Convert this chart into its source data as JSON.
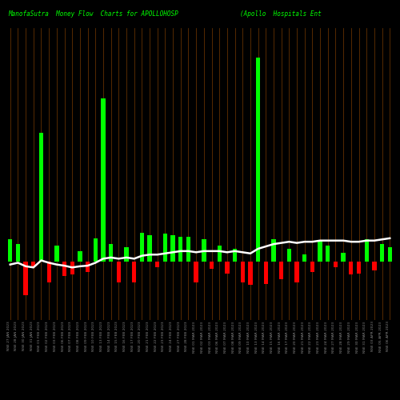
{
  "title_left": "ManofaSutra  Money Flow  Charts for APOLLOHOSP",
  "title_right": "(Apollo  Hospitals Ent",
  "background_color": "#000000",
  "bar_colors_pattern": [
    "green",
    "green",
    "red",
    "red",
    "green",
    "red",
    "green",
    "red",
    "red",
    "green",
    "red",
    "green",
    "green",
    "green",
    "red",
    "green",
    "red",
    "green",
    "green",
    "red",
    "green",
    "green",
    "green",
    "green",
    "red",
    "green",
    "red",
    "green",
    "red",
    "green",
    "red",
    "red",
    "green",
    "red",
    "green",
    "red",
    "green",
    "red",
    "green",
    "red",
    "green",
    "green",
    "red",
    "green",
    "red",
    "red",
    "green",
    "red",
    "green",
    "green"
  ],
  "bar_heights": [
    0.38,
    0.3,
    -0.58,
    -0.08,
    2.2,
    -0.35,
    0.28,
    -0.25,
    -0.22,
    0.18,
    -0.18,
    0.4,
    2.8,
    0.3,
    -0.35,
    0.25,
    -0.35,
    0.5,
    0.45,
    -0.1,
    0.48,
    0.45,
    0.42,
    0.42,
    -0.35,
    0.38,
    -0.12,
    0.28,
    -0.2,
    0.22,
    -0.35,
    -0.4,
    3.5,
    -0.38,
    0.38,
    -0.3,
    0.22,
    -0.35,
    0.12,
    -0.18,
    0.35,
    0.28,
    -0.1,
    0.15,
    -0.22,
    -0.2,
    0.38,
    -0.15,
    0.3,
    0.25
  ],
  "ma_line_y": [
    -0.05,
    -0.02,
    -0.08,
    -0.1,
    0.02,
    -0.02,
    -0.05,
    -0.07,
    -0.1,
    -0.08,
    -0.07,
    -0.02,
    0.05,
    0.07,
    0.05,
    0.07,
    0.05,
    0.1,
    0.12,
    0.12,
    0.14,
    0.16,
    0.18,
    0.18,
    0.16,
    0.18,
    0.18,
    0.18,
    0.16,
    0.18,
    0.16,
    0.14,
    0.22,
    0.26,
    0.3,
    0.32,
    0.34,
    0.32,
    0.34,
    0.34,
    0.36,
    0.36,
    0.36,
    0.36,
    0.34,
    0.34,
    0.36,
    0.36,
    0.38,
    0.4
  ],
  "grid_color": "#8B4500",
  "bar_green": "#00FF00",
  "bar_red": "#FF0000",
  "ma_color": "#FFFFFF",
  "title_color": "#00FF00",
  "xlabel_color": "#888888",
  "ylim_min": -1.0,
  "ylim_max": 4.0,
  "labels": [
    "NSE 27 JAN 2023",
    "NSE 28 JAN 2023",
    "NSE 30 JAN 2023",
    "NSE 31 JAN 2023",
    "NSE 01 FEB 2023",
    "NSE 02 FEB 2023",
    "NSE 03 FEB 2023",
    "NSE 06 FEB 2023",
    "NSE 07 FEB 2023",
    "NSE 08 FEB 2023",
    "NSE 09 FEB 2023",
    "NSE 10 FEB 2023",
    "NSE 13 FEB 2023",
    "NSE 14 FEB 2023",
    "NSE 15 FEB 2023",
    "NSE 16 FEB 2023",
    "NSE 17 FEB 2023",
    "NSE 20 FEB 2023",
    "NSE 21 FEB 2023",
    "NSE 22 FEB 2023",
    "NSE 23 FEB 2023",
    "NSE 24 FEB 2023",
    "NSE 27 FEB 2023",
    "NSE 28 FEB 2023",
    "NSE 01 MAR 2023",
    "NSE 02 MAR 2023",
    "NSE 03 MAR 2023",
    "NSE 06 MAR 2023",
    "NSE 07 MAR 2023",
    "NSE 08 MAR 2023",
    "NSE 09 MAR 2023",
    "NSE 10 MAR 2023",
    "NSE 13 MAR 2023",
    "NSE 14 MAR 2023",
    "NSE 15 MAR 2023",
    "NSE 16 MAR 2023",
    "NSE 17 MAR 2023",
    "NSE 20 MAR 2023",
    "NSE 21 MAR 2023",
    "NSE 22 MAR 2023",
    "NSE 23 MAR 2023",
    "NSE 24 MAR 2023",
    "NSE 27 MAR 2023",
    "NSE 28 MAR 2023",
    "NSE 29 MAR 2023",
    "NSE 30 MAR 2023",
    "NSE 31 MAR 2023",
    "NSE 03 APR 2023",
    "NSE 05 APR 2023",
    "NSE 06 APR 2023"
  ]
}
